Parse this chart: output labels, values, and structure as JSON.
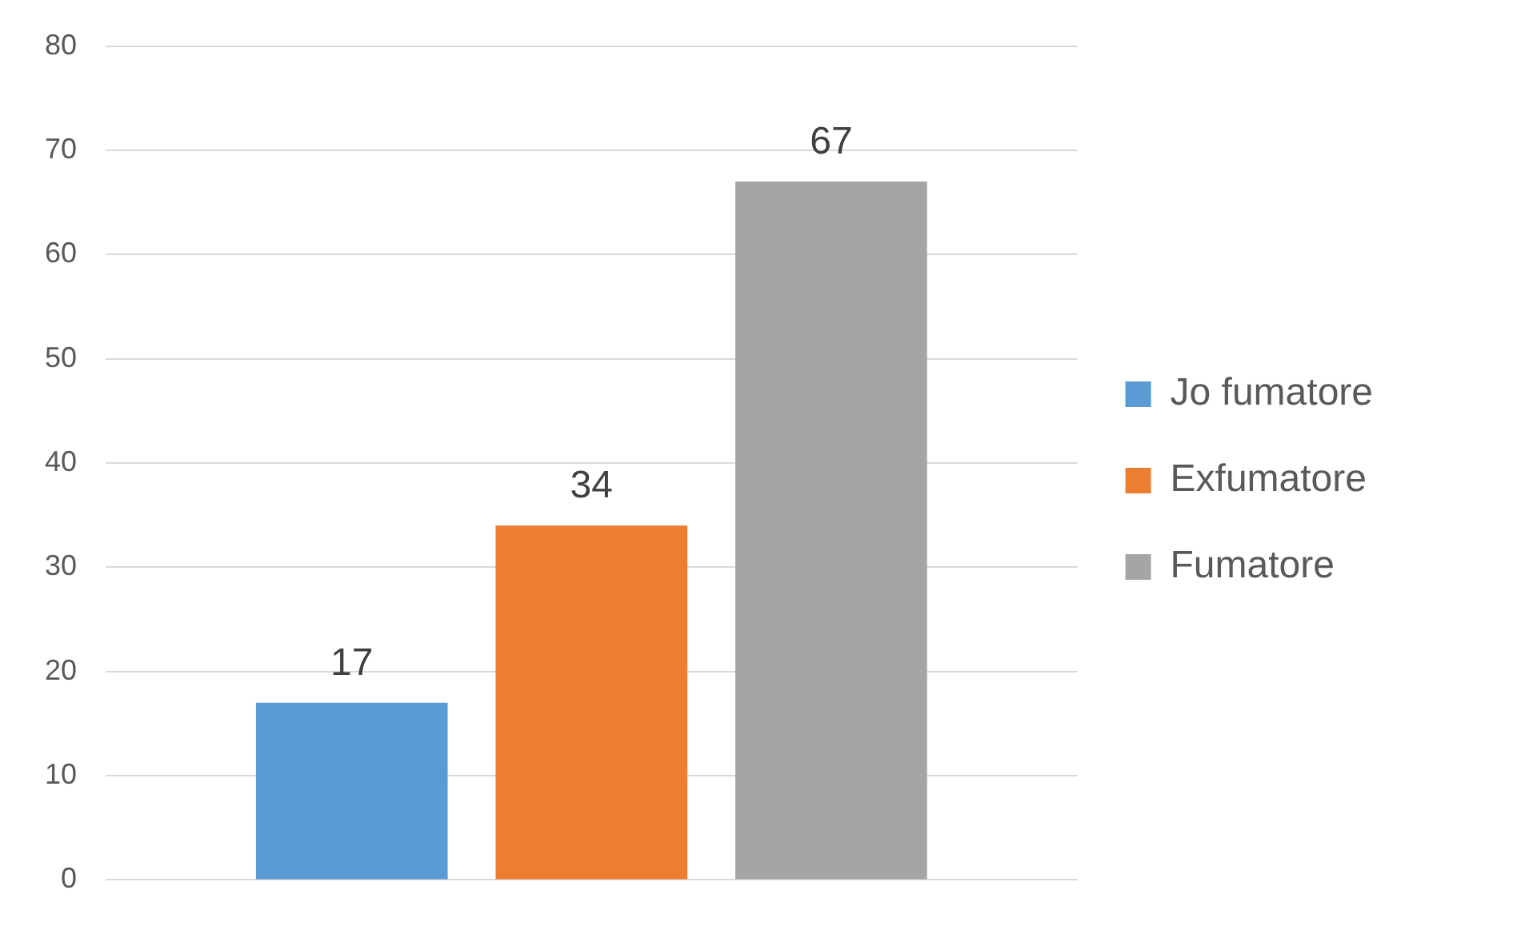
{
  "chart_data": {
    "type": "bar",
    "categories": [
      null
    ],
    "series": [
      {
        "name": "Jo fumatore",
        "color": "#5b9bd5",
        "values": [
          17
        ]
      },
      {
        "name": "Exfumatore",
        "color": "#ed7d31",
        "values": [
          34
        ]
      },
      {
        "name": "Fumatore",
        "color": "#a5a5a5",
        "values": [
          67
        ]
      }
    ],
    "ylim": [
      0,
      80
    ],
    "yticks": [
      0,
      10,
      20,
      30,
      40,
      50,
      60,
      70,
      80
    ],
    "grid": "y",
    "legend": "right",
    "data_labels": true
  }
}
